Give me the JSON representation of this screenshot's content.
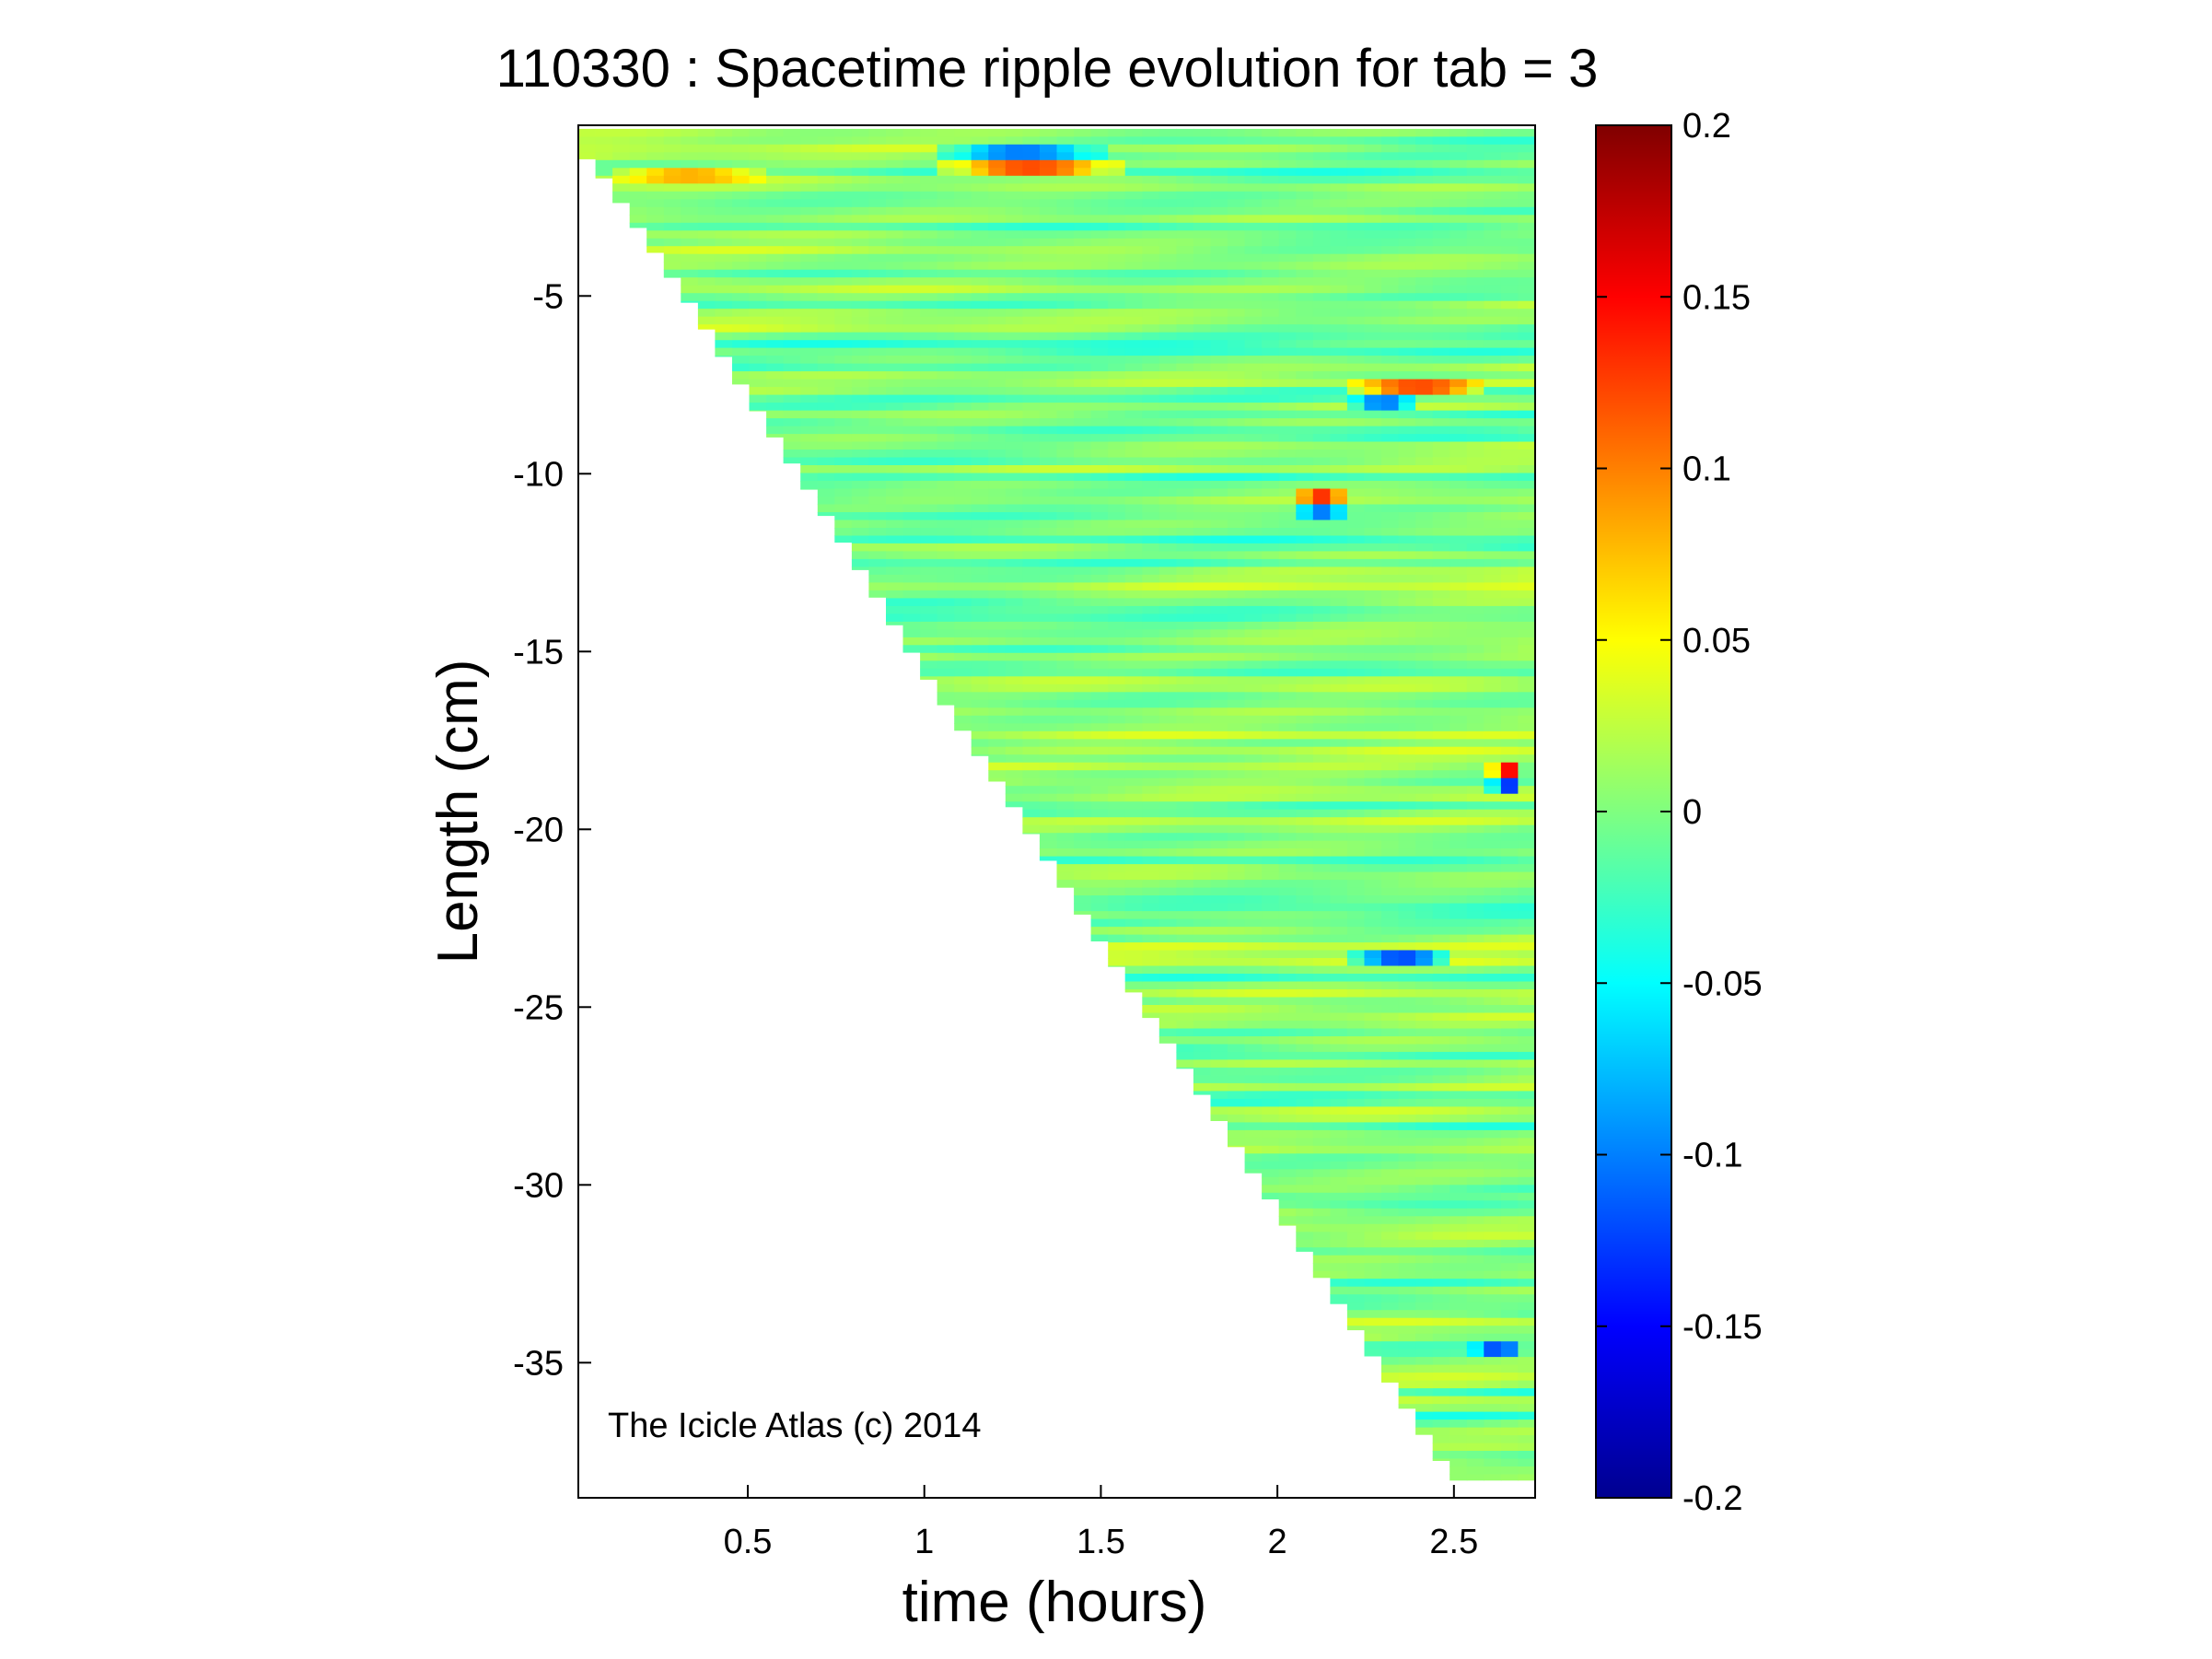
{
  "chart_data": {
    "type": "heatmap",
    "title": "110330 : Spacetime ripple evolution for tab = 3",
    "xlabel": "time (hours)",
    "ylabel": "Length (cm)",
    "xlim": [
      0.02,
      2.73
    ],
    "ylim": [
      -38.8,
      -0.2
    ],
    "x_ticks": [
      0.5,
      1,
      1.5,
      2,
      2.5
    ],
    "x_tick_labels": [
      "0.5",
      "1",
      "1.5",
      "2",
      "2.5"
    ],
    "y_ticks": [
      -5,
      -10,
      -15,
      -20,
      -25,
      -30,
      -35
    ],
    "y_tick_labels": [
      "-5",
      "-10",
      "-15",
      "-20",
      "-25",
      "-30",
      "-35"
    ],
    "colorbar": {
      "colormap": "jet",
      "clim": [
        -0.2,
        0.2
      ],
      "ticks": [
        0.2,
        0.15,
        0.1,
        0.05,
        0,
        -0.05,
        -0.1,
        -0.15,
        -0.2
      ],
      "tick_labels": [
        "0.2",
        "0.15",
        "0.1",
        "0.05",
        "0",
        "-0.05",
        "-0.1",
        "-0.15",
        "-0.2"
      ]
    },
    "coverage_boundary": {
      "description_time_hours": [
        0.02,
        0.08,
        0.15,
        0.35,
        0.5,
        0.75,
        1.0,
        1.25,
        1.5,
        1.75,
        2.0,
        2.25,
        2.5,
        2.6,
        2.7
      ],
      "min_length_cm": [
        -0.9,
        -1.5,
        -2.5,
        -5.4,
        -7.8,
        -11.6,
        -15.6,
        -19.3,
        -23.2,
        -26.9,
        -30.7,
        -34.5,
        -38.3,
        -38.3,
        -38.3
      ]
    },
    "notable_features": [
      {
        "t_start": 1.05,
        "t_end": 1.55,
        "length_cm": -1.3,
        "value": 0.12
      },
      {
        "t_start": 1.05,
        "t_end": 1.5,
        "length_cm": -1.0,
        "value": -0.1
      },
      {
        "t_start": 0.12,
        "t_end": 0.55,
        "length_cm": -1.7,
        "value": 0.08
      },
      {
        "t_start": 2.2,
        "t_end": 2.6,
        "length_cm": -7.6,
        "value": 0.12
      },
      {
        "t_start": 2.2,
        "t_end": 2.4,
        "length_cm": -8.0,
        "value": -0.1
      },
      {
        "t_start": 2.05,
        "t_end": 2.2,
        "length_cm": -10.6,
        "value": 0.13
      },
      {
        "t_start": 2.05,
        "t_end": 2.2,
        "length_cm": -11.1,
        "value": -0.1
      },
      {
        "t_start": 2.6,
        "t_end": 2.7,
        "length_cm": -18.3,
        "value": 0.15
      },
      {
        "t_start": 2.6,
        "t_end": 2.7,
        "length_cm": -18.8,
        "value": -0.13
      },
      {
        "t_start": 2.2,
        "t_end": 2.5,
        "length_cm": -23.7,
        "value": -0.12
      },
      {
        "t_start": 2.55,
        "t_end": 2.7,
        "length_cm": -34.7,
        "value": -0.12
      }
    ]
  },
  "watermark": "The Icicle Atlas (c) 2014"
}
